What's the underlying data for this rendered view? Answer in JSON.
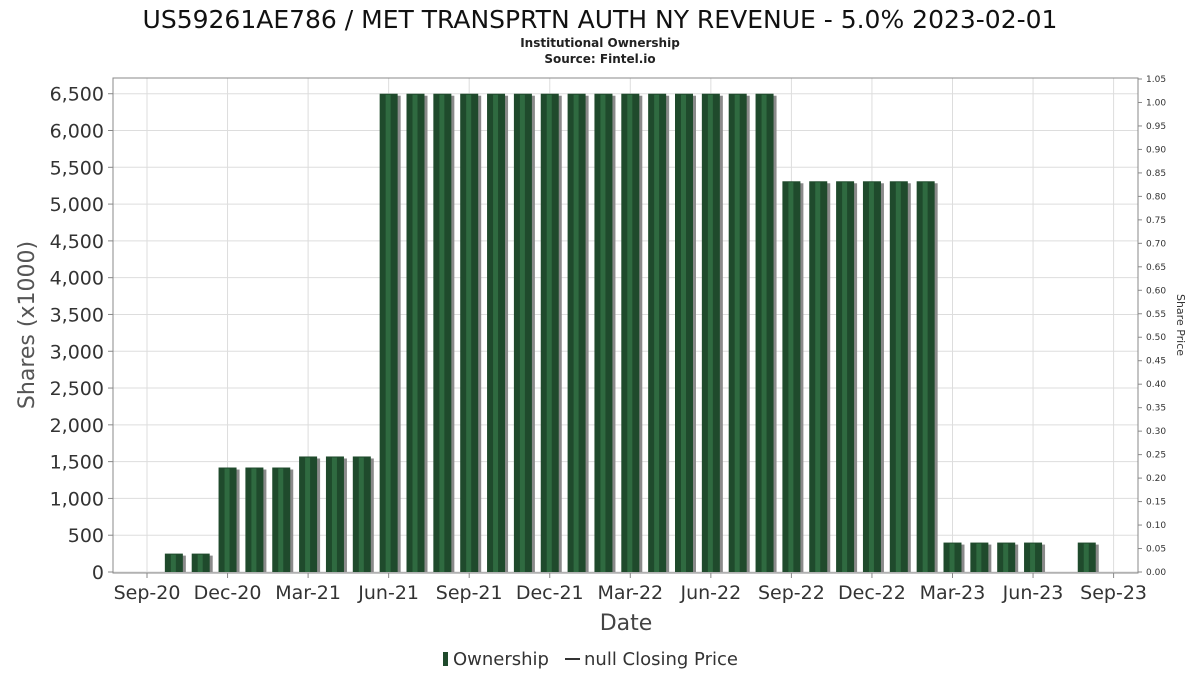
{
  "header": {
    "title": "US59261AE786 / MET TRANSPRTN AUTH NY REVENUE - 5.0% 2023-02-01",
    "subtitle": "Institutional Ownership",
    "source": "Source: Fintel.io"
  },
  "legend": {
    "ownership_label": "Ownership",
    "price_label": "null Closing Price"
  },
  "colors": {
    "bar": "#1f4a2c",
    "bar_highlight": "#2f6a40",
    "bar_shadow": "#8a8a8a",
    "grid": "#dddddd",
    "axis": "#888888",
    "text": "#333333"
  },
  "chart_data": {
    "type": "bar",
    "title": "US59261AE786 / MET TRANSPRTN AUTH NY REVENUE - 5.0% 2023-02-01",
    "xlabel": "Date",
    "ylabel": "Shares (x1000)",
    "y2label": "Share Price",
    "ylim": [
      0,
      6700
    ],
    "y2lim": [
      0,
      1.05
    ],
    "grid": true,
    "legend_position": "bottom",
    "yticks": [
      0,
      500,
      1000,
      1500,
      2000,
      2500,
      3000,
      3500,
      4000,
      4500,
      5000,
      5500,
      6000,
      6500
    ],
    "ytick_labels": [
      "0",
      "500",
      "1,000",
      "1,500",
      "2,000",
      "2,500",
      "3,000",
      "3,500",
      "4,000",
      "4,500",
      "5,000",
      "5,500",
      "6,000",
      "6,500"
    ],
    "y2ticks": [
      "0.00",
      "0.05",
      "0.10",
      "0.15",
      "0.20",
      "0.25",
      "0.30",
      "0.35",
      "0.40",
      "0.45",
      "0.50",
      "0.55",
      "0.60",
      "0.65",
      "0.70",
      "0.75",
      "0.80",
      "0.85",
      "0.90",
      "0.95",
      "1.00",
      "1.05"
    ],
    "xtick_labels": [
      "Sep-20",
      "Dec-20",
      "Mar-21",
      "Jun-21",
      "Sep-21",
      "Dec-21",
      "Mar-22",
      "Jun-22",
      "Sep-22",
      "Dec-22",
      "Mar-23",
      "Jun-23",
      "Sep-23"
    ],
    "x": [
      "2020-10",
      "2020-11",
      "2020-12",
      "2021-01",
      "2021-02",
      "2021-03",
      "2021-04",
      "2021-05",
      "2021-06",
      "2021-07",
      "2021-08",
      "2021-09",
      "2021-10",
      "2021-11",
      "2021-12",
      "2022-01",
      "2022-02",
      "2022-03",
      "2022-04",
      "2022-05",
      "2022-06",
      "2022-07",
      "2022-08",
      "2022-09",
      "2022-10",
      "2022-11",
      "2022-12",
      "2023-01",
      "2023-02",
      "2023-03",
      "2023-04",
      "2023-05",
      "2023-06",
      "2023-07",
      "2023-08"
    ],
    "series": [
      {
        "name": "Ownership",
        "values": [
          250,
          250,
          1420,
          1420,
          1420,
          1570,
          1570,
          1570,
          6500,
          6500,
          6500,
          6500,
          6500,
          6500,
          6500,
          6500,
          6500,
          6500,
          6500,
          6500,
          6500,
          6500,
          6500,
          5310,
          5310,
          5310,
          5310,
          5310,
          5310,
          400,
          400,
          400,
          400,
          null,
          400
        ]
      }
    ]
  }
}
